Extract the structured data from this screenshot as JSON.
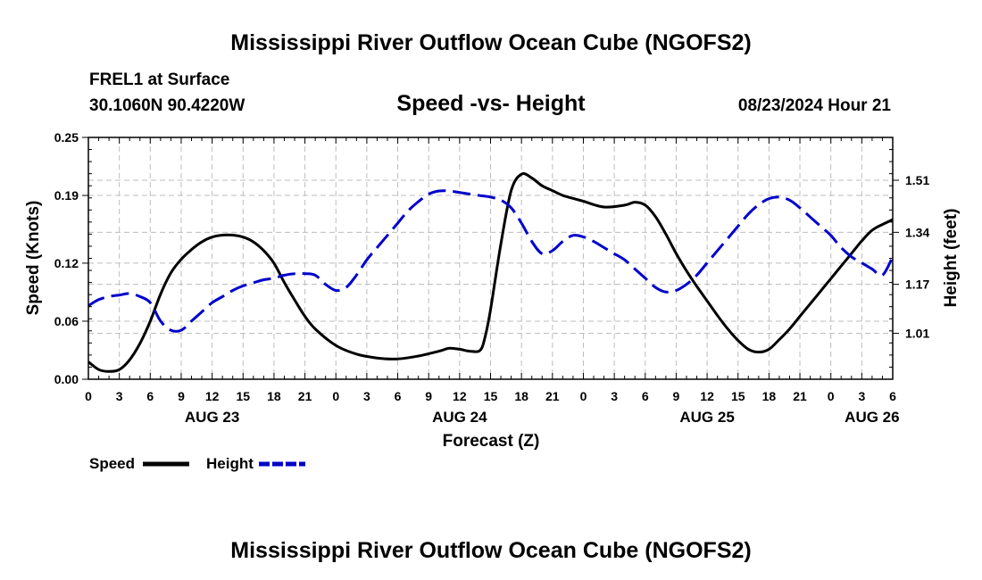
{
  "page": {
    "title_top": "Mississippi River Outflow Ocean Cube (NGOFS2)",
    "title_bottom": "Mississippi River Outflow Ocean Cube (NGOFS2)",
    "station": "FREL1 at Surface",
    "coords": "30.1060N  90.4220W",
    "plot_title": "Speed -vs- Height",
    "datetime": "08/23/2024 Hour 21"
  },
  "chart_data": {
    "type": "line",
    "title": "Speed -vs- Height",
    "xlabel": "Forecast (Z)",
    "ylabel_left": "Speed (Knots)",
    "ylabel_right": "Height (feet)",
    "x_range": [
      0,
      78
    ],
    "x_tick_step": 3,
    "x_tick_labels": [
      "0",
      "3",
      "6",
      "9",
      "12",
      "15",
      "18",
      "21",
      "0",
      "3",
      "6",
      "9",
      "12",
      "15",
      "18",
      "21",
      "0",
      "3",
      "6",
      "9",
      "12",
      "15",
      "18",
      "21",
      "0",
      "3",
      "6"
    ],
    "date_labels": [
      {
        "x": 12,
        "label": "AUG 23"
      },
      {
        "x": 36,
        "label": "AUG 24"
      },
      {
        "x": 60,
        "label": "AUG 25"
      },
      {
        "x": 76,
        "label": "AUG 26"
      }
    ],
    "y_left": {
      "range": [
        0,
        0.25
      ],
      "ticks": [
        0.0,
        0.06,
        0.12,
        0.19,
        0.25
      ],
      "tick_labels": [
        "0.00",
        "0.06",
        "0.12",
        "0.19",
        "0.25"
      ]
    },
    "y_right": {
      "range": [
        0.86,
        1.65
      ],
      "ticks": [
        1.01,
        1.17,
        1.34,
        1.51
      ],
      "tick_labels": [
        "1.01",
        "1.17",
        "1.34",
        "1.51"
      ]
    },
    "grid": true,
    "colors": {
      "speed": "#000000",
      "height": "#0000cc"
    },
    "series": [
      {
        "name": "Speed",
        "axis": "left",
        "style": "solid",
        "x": [
          0,
          1,
          2,
          3,
          4,
          5,
          6,
          7,
          8,
          9,
          10,
          11,
          12,
          13,
          14,
          15,
          16,
          17,
          18,
          19,
          20,
          21,
          22,
          24,
          26,
          28,
          30,
          32,
          34,
          35,
          36,
          37,
          38,
          38.5,
          39,
          40,
          41,
          42,
          43,
          44,
          45,
          46,
          47,
          48,
          50,
          52,
          53,
          54,
          55,
          56,
          57,
          58,
          59,
          60,
          61,
          62,
          63,
          64,
          65,
          66,
          67,
          68,
          69,
          70,
          71,
          72,
          73,
          74,
          75,
          76,
          77,
          78
        ],
        "y": [
          0.018,
          0.01,
          0.008,
          0.01,
          0.02,
          0.037,
          0.06,
          0.088,
          0.11,
          0.124,
          0.134,
          0.142,
          0.147,
          0.149,
          0.149,
          0.147,
          0.142,
          0.133,
          0.12,
          0.1,
          0.082,
          0.065,
          0.052,
          0.035,
          0.026,
          0.022,
          0.021,
          0.024,
          0.029,
          0.032,
          0.031,
          0.029,
          0.03,
          0.045,
          0.072,
          0.14,
          0.195,
          0.212,
          0.208,
          0.2,
          0.195,
          0.19,
          0.187,
          0.184,
          0.178,
          0.18,
          0.183,
          0.18,
          0.168,
          0.15,
          0.13,
          0.112,
          0.096,
          0.081,
          0.066,
          0.052,
          0.04,
          0.031,
          0.028,
          0.031,
          0.041,
          0.052,
          0.065,
          0.078,
          0.091,
          0.104,
          0.117,
          0.13,
          0.143,
          0.154,
          0.16,
          0.165
        ]
      },
      {
        "name": "Height",
        "axis": "right",
        "style": "dashed",
        "x": [
          0,
          1,
          2,
          3,
          4,
          5,
          6,
          7,
          8,
          9,
          10,
          11,
          12,
          13,
          14,
          15,
          16,
          17,
          18,
          19,
          20,
          21,
          22,
          23,
          24,
          25,
          26,
          27,
          28,
          29,
          30,
          31,
          32,
          33,
          34,
          35,
          36,
          37,
          38,
          39,
          40,
          41,
          42,
          43,
          44,
          45,
          46,
          47,
          48,
          49,
          50,
          51,
          52,
          53,
          54,
          55,
          56,
          57,
          58,
          59,
          60,
          61,
          62,
          63,
          64,
          65,
          66,
          67,
          68,
          69,
          70,
          71,
          72,
          73,
          74,
          75,
          76,
          77,
          78
        ],
        "y": [
          1.1,
          1.12,
          1.13,
          1.135,
          1.14,
          1.13,
          1.11,
          1.05,
          1.02,
          1.02,
          1.05,
          1.08,
          1.11,
          1.13,
          1.15,
          1.165,
          1.175,
          1.185,
          1.19,
          1.2,
          1.205,
          1.205,
          1.2,
          1.17,
          1.15,
          1.16,
          1.2,
          1.25,
          1.29,
          1.33,
          1.37,
          1.41,
          1.44,
          1.465,
          1.475,
          1.475,
          1.47,
          1.465,
          1.46,
          1.455,
          1.445,
          1.42,
          1.37,
          1.31,
          1.27,
          1.28,
          1.31,
          1.33,
          1.325,
          1.31,
          1.29,
          1.27,
          1.25,
          1.22,
          1.19,
          1.16,
          1.145,
          1.15,
          1.17,
          1.2,
          1.24,
          1.28,
          1.32,
          1.36,
          1.4,
          1.43,
          1.45,
          1.455,
          1.445,
          1.42,
          1.39,
          1.36,
          1.33,
          1.29,
          1.26,
          1.24,
          1.22,
          1.2,
          1.26
        ]
      }
    ]
  }
}
